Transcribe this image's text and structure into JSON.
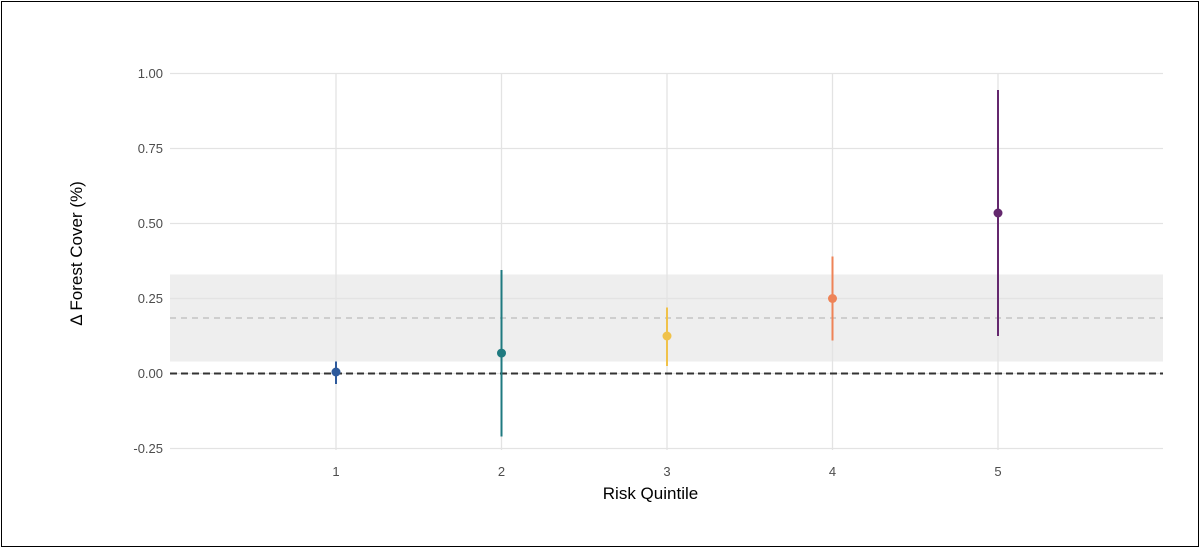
{
  "chart_data": {
    "type": "scatter",
    "subtype": "point-range",
    "xlabel": "Risk Quintile",
    "ylabel": "Δ Forest Cover (%)",
    "x_categories": [
      "1",
      "2",
      "3",
      "4",
      "5"
    ],
    "ylim": [
      -0.27,
      1.08
    ],
    "y_ticks": [
      -0.25,
      0.0,
      0.25,
      0.5,
      0.75,
      1.0
    ],
    "y_tick_labels": [
      "-0.25",
      "0.00",
      "0.25",
      "0.50",
      "0.75",
      "1.00"
    ],
    "grid": true,
    "points": [
      {
        "x": "1",
        "estimate": 0.005,
        "lower": -0.035,
        "upper": 0.04,
        "color": "#2e5a9c"
      },
      {
        "x": "2",
        "estimate": 0.068,
        "lower": -0.21,
        "upper": 0.345,
        "color": "#1f7a80"
      },
      {
        "x": "3",
        "estimate": 0.125,
        "lower": 0.025,
        "upper": 0.22,
        "color": "#f0c24a"
      },
      {
        "x": "4",
        "estimate": 0.25,
        "lower": 0.11,
        "upper": 0.39,
        "color": "#ee8357"
      },
      {
        "x": "5",
        "estimate": 0.535,
        "lower": 0.125,
        "upper": 0.945,
        "color": "#64286e"
      }
    ],
    "reference_band": {
      "lower": 0.04,
      "upper": 0.33,
      "color": "#eeeeee"
    },
    "reference_line": {
      "y": 0.185,
      "style": "dashed",
      "color": "#bbbbbb"
    },
    "zero_line": {
      "y": 0.0,
      "style": "dashed",
      "color": "#333333"
    }
  }
}
